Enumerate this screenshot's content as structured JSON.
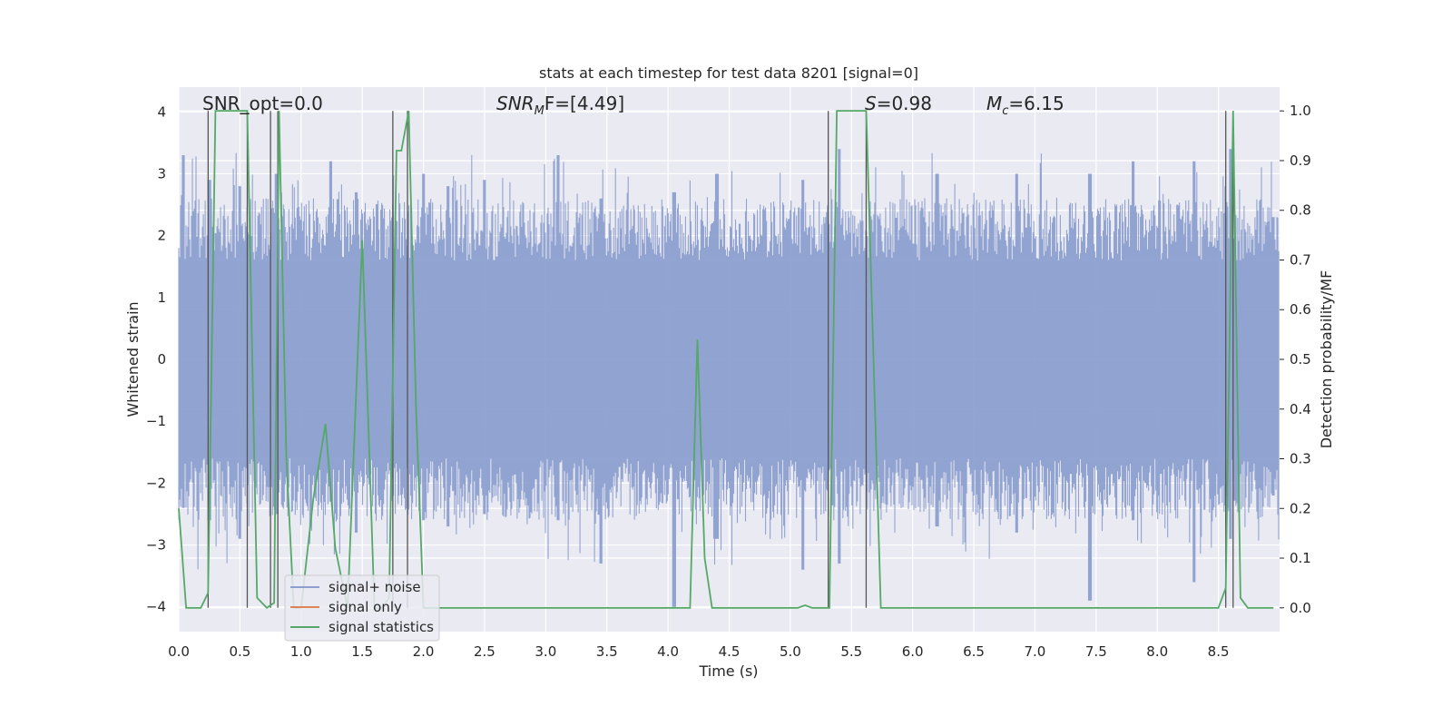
{
  "chart_data": {
    "type": "line",
    "title": "stats at each timestep for test data 8201 [signal=0]",
    "xlabel": "Time (s)",
    "ylabel": "Whitened strain",
    "ylabel_right": "Detection probability/MF",
    "xlim": [
      0.0,
      9.0
    ],
    "ylim": [
      -4.4,
      4.4
    ],
    "ylim_right": [
      -0.0479,
      1.0479
    ],
    "xticks": [
      0.0,
      0.5,
      1.0,
      1.5,
      2.0,
      2.5,
      3.0,
      3.5,
      4.0,
      4.5,
      5.0,
      5.5,
      6.0,
      6.5,
      7.0,
      7.5,
      8.0,
      8.5
    ],
    "xtick_labels": [
      "0.0",
      "0.5",
      "1.0",
      "1.5",
      "2.0",
      "2.5",
      "3.0",
      "3.5",
      "4.0",
      "4.5",
      "5.0",
      "5.5",
      "6.0",
      "6.5",
      "7.0",
      "7.5",
      "8.0",
      "8.5"
    ],
    "yticks": [
      -4,
      -3,
      -2,
      -1,
      0,
      1,
      2,
      3,
      4
    ],
    "ytick_labels": [
      "−4",
      "−3",
      "−2",
      "−1",
      "0",
      "1",
      "2",
      "3",
      "4"
    ],
    "yticks_right": [
      0.0,
      0.1,
      0.2,
      0.3,
      0.4,
      0.5,
      0.6,
      0.7,
      0.8,
      0.9,
      1.0
    ],
    "ytick_labels_right": [
      "0.0",
      "0.1",
      "0.2",
      "0.3",
      "0.4",
      "0.5",
      "0.6",
      "0.7",
      "0.8",
      "0.9",
      "1.0"
    ],
    "grid": true,
    "legend_position": "bottom-left",
    "noise_envelope": {
      "band_core": 1.6,
      "peaks": [
        {
          "x": 0.04,
          "hi": 3.3,
          "lo": -2.4
        },
        {
          "x": 0.25,
          "hi": 2.9,
          "lo": -2.6
        },
        {
          "x": 0.5,
          "hi": 2.8,
          "lo": -2.9
        },
        {
          "x": 0.8,
          "hi": 3.0,
          "lo": -2.5
        },
        {
          "x": 1.24,
          "hi": 3.2,
          "lo": -2.3
        },
        {
          "x": 1.45,
          "hi": 2.7,
          "lo": -2.8
        },
        {
          "x": 2.0,
          "hi": 3.0,
          "lo": -2.6
        },
        {
          "x": 2.2,
          "hi": 2.8,
          "lo": -2.7
        },
        {
          "x": 2.5,
          "hi": 2.9,
          "lo": -2.5
        },
        {
          "x": 3.1,
          "hi": 3.3,
          "lo": -2.6
        },
        {
          "x": 3.45,
          "hi": 2.6,
          "lo": -3.3
        },
        {
          "x": 4.05,
          "hi": 2.7,
          "lo": -4.0
        },
        {
          "x": 4.4,
          "hi": 3.0,
          "lo": -2.9
        },
        {
          "x": 5.1,
          "hi": 2.9,
          "lo": -3.4
        },
        {
          "x": 5.4,
          "hi": 3.4,
          "lo": -3.3
        },
        {
          "x": 6.2,
          "hi": 3.0,
          "lo": -2.7
        },
        {
          "x": 6.85,
          "hi": 3.0,
          "lo": -2.8
        },
        {
          "x": 7.45,
          "hi": 3.0,
          "lo": -3.9
        },
        {
          "x": 7.8,
          "hi": 3.2,
          "lo": -2.6
        },
        {
          "x": 8.3,
          "hi": 3.2,
          "lo": -3.6
        },
        {
          "x": 8.6,
          "hi": 3.4,
          "lo": -2.9
        },
        {
          "x": 8.95,
          "hi": 2.3,
          "lo": -2.2
        }
      ]
    },
    "series": [
      {
        "name": "signal+ noise",
        "color": "#8c9fcf",
        "axis": "left",
        "x": [],
        "y": []
      },
      {
        "name": "signal only",
        "color": "#dd8452",
        "axis": "left",
        "x": [],
        "y": []
      },
      {
        "name": "signal statistics",
        "color": "#55a868",
        "axis": "right",
        "x": [
          0.0,
          0.06,
          0.18,
          0.24,
          0.3,
          0.56,
          0.64,
          0.72,
          0.78,
          0.82,
          0.88,
          0.94,
          1.0,
          1.1,
          1.2,
          1.28,
          1.38,
          1.5,
          1.6,
          1.66,
          1.72,
          1.78,
          1.82,
          1.88,
          1.94,
          2.0,
          4.18,
          4.24,
          4.3,
          4.36,
          5.06,
          5.12,
          5.18,
          5.26,
          5.32,
          5.38,
          5.62,
          5.74,
          8.5,
          8.56,
          8.62,
          8.68,
          8.74,
          8.95
        ],
        "y": [
          0.2,
          0.0,
          0.0,
          0.03,
          1.0,
          1.0,
          0.02,
          0.0,
          0.01,
          1.0,
          0.3,
          0.0,
          0.0,
          0.22,
          0.37,
          0.12,
          0.0,
          0.74,
          0.0,
          0.0,
          0.02,
          0.92,
          0.92,
          1.0,
          0.4,
          0.0,
          0.0,
          0.54,
          0.1,
          0.0,
          0.0,
          0.005,
          0.0,
          0.0,
          0.0,
          1.0,
          1.0,
          0.0,
          0.0,
          0.04,
          1.0,
          0.02,
          0.0,
          0.0
        ]
      }
    ],
    "vlines": [
      {
        "x": 0.24,
        "ymax": 0.0
      },
      {
        "x": 0.56,
        "ymax": 1.0
      },
      {
        "x": 0.75,
        "ymax": 1.0
      },
      {
        "x": 0.81,
        "ymax": 1.0
      },
      {
        "x": 1.75,
        "ymax": 1.0
      },
      {
        "x": 1.87,
        "ymax": 1.0
      },
      {
        "x": 5.31,
        "ymax": 1.0
      },
      {
        "x": 5.62,
        "ymax": 1.0
      },
      {
        "x": 8.56,
        "ymax": 1.0
      },
      {
        "x": 8.62,
        "ymax": 1.0
      }
    ],
    "annotations": {
      "snr_opt": "SNR_opt=0.0",
      "snr_mf_main": "SNR",
      "snr_mf_sub": "M",
      "snr_mf_rest": "F=[4.49]",
      "s_main": "S",
      "s_rest": "=0.98",
      "mc_main": "M",
      "mc_sub": "c",
      "mc_rest": "=6.15"
    },
    "colors": {
      "plot_background": "#eaeaf2",
      "grid": "#ffffff",
      "noise": "#8c9fcf",
      "signal_only": "#dd8452",
      "statistics": "#55a868",
      "vline": "#555555"
    }
  }
}
